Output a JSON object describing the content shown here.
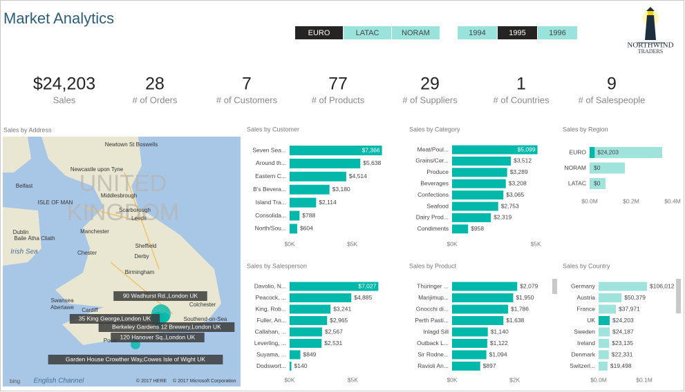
{
  "header": {
    "title": "Market Analytics",
    "region_filters": [
      "EURO",
      "LATAC",
      "NORAM"
    ],
    "region_selected": 0,
    "year_filters": [
      "1994",
      "1995",
      "1996"
    ],
    "year_selected": 1,
    "logo": [
      "NORTHWIND",
      "TRADERS"
    ]
  },
  "kpis": [
    {
      "value": "$24,203",
      "label": "Sales"
    },
    {
      "value": "28",
      "label": "# of Orders"
    },
    {
      "value": "7",
      "label": "# of Customers"
    },
    {
      "value": "77",
      "label": "# of Products"
    },
    {
      "value": "29",
      "label": "# of Suppliers"
    },
    {
      "value": "1",
      "label": "# of Countries"
    },
    {
      "value": "9",
      "label": "# of Salespeople"
    }
  ],
  "map": {
    "title": "Sales by Address",
    "country_label": [
      "UNITED",
      "KINGDOM"
    ],
    "places": [
      "Newtown St Boswells",
      "Newcastle upon Tyne",
      "Belfast",
      "ISLE OF MAN",
      "Middlesbrough",
      "Scarborough",
      "Leeds",
      "Dublin",
      "Baile Átha Cliath",
      "Manchester",
      "Sheffield",
      "Irish Sea",
      "Chester",
      "Birmingham",
      "Swansea",
      "Abertawe",
      "Cardiff",
      "Colchester",
      "Southend-on-Sea",
      "Poole",
      "English Channel",
      "Derby"
    ],
    "addresses": [
      "90 Wadhurst Rd.,London UK",
      "35 King George,London UK",
      "Berkeley Gardens 12 Brewery,London UK",
      "120 Hanover Sq.,London UK",
      "Garden House Crowther Way,Cowes Isle of Wight UK"
    ],
    "credits": [
      "bing",
      "© 2017 HERE",
      "© 2017 Microsoft Corporation"
    ]
  },
  "chart_data": [
    {
      "type": "hbar",
      "title": "Sales by Customer",
      "categories": [
        "Seven Sea...",
        "Around th...",
        "Eastern C...",
        "B's Bevera...",
        "Island Tra...",
        "Consolida...",
        "North/Sou..."
      ],
      "values": [
        7366,
        5638,
        4514,
        3180,
        2114,
        788,
        604
      ],
      "value_labels": [
        "$7,366",
        "$5,638",
        "$4,514",
        "$3,180",
        "$2,114",
        "$788",
        "$604"
      ],
      "color": "#01b8aa",
      "xlim": [
        0,
        7500
      ],
      "xticks": [
        {
          "value": 0,
          "label": "$0K"
        },
        {
          "value": 5000,
          "label": "$5K"
        }
      ]
    },
    {
      "type": "hbar",
      "title": "Sales by Category",
      "categories": [
        "Meat/Poul...",
        "Grains/Cer...",
        "Produce",
        "Beverages",
        "Confections",
        "Seafood",
        "Dairy Prod...",
        "Condiments"
      ],
      "values": [
        5099,
        3512,
        3289,
        3208,
        3065,
        2753,
        2319,
        958
      ],
      "value_labels": [
        "$5,099",
        "$3,512",
        "$3,289",
        "$3,208",
        "$3,065",
        "$2,753",
        "$2,319",
        "$958"
      ],
      "color": "#01b8aa",
      "xlim": [
        0,
        5200
      ],
      "xticks": [
        {
          "value": 0,
          "label": "$0K"
        },
        {
          "value": 5000,
          "label": "$5K"
        }
      ]
    },
    {
      "type": "hbar",
      "title": "Sales by Region",
      "categories": [
        "EURO",
        "NORAM",
        "LATAC"
      ],
      "values": [
        24203,
        0,
        0
      ],
      "value_labels": [
        "$24,203",
        "$0",
        "$0"
      ],
      "background_values": [
        350000,
        170000,
        77000
      ],
      "background_color": "#9fe3dc",
      "color": "#01b8aa",
      "xlim": [
        0,
        400000
      ],
      "xticks": [
        {
          "value": 0,
          "label": "$0.0M"
        },
        {
          "value": 200000,
          "label": "$0.2M"
        },
        {
          "value": 400000,
          "label": "$0.4M"
        }
      ]
    },
    {
      "type": "hbar",
      "title": "Sales by Salesperson",
      "categories": [
        "Davolio, N...",
        "Peacock, ...",
        "King, Rob...",
        "Fuller, An...",
        "Callahan, ...",
        "Leverling, ...",
        "Suyama, ...",
        "Dodswort..."
      ],
      "values": [
        7027,
        4885,
        3241,
        2965,
        2567,
        2531,
        849,
        140
      ],
      "value_labels": [
        "$7,027",
        "$4,885",
        "$3,241",
        "$2,965",
        "$2,567",
        "$2,531",
        "$849",
        "$140"
      ],
      "color": "#01b8aa",
      "xlim": [
        0,
        7500
      ],
      "xticks": [
        {
          "value": 0,
          "label": "$0K"
        },
        {
          "value": 5000,
          "label": "$5K"
        }
      ]
    },
    {
      "type": "hbar",
      "title": "Sales by Product",
      "categories": [
        "Thüringer ...",
        "Manjimup...",
        "Gnocchi di...",
        "Perth Pasti...",
        "Inlagd Sill",
        "Outback L...",
        "Sir Rodne...",
        "Ravioli An..."
      ],
      "values": [
        2079,
        1950,
        1786,
        1638,
        1140,
        1122,
        1094,
        897
      ],
      "value_labels": [
        "$2,079",
        "$1,950",
        "$1,786",
        "$1,638",
        "$1,140",
        "$1,122",
        "$1,094",
        "$897"
      ],
      "color": "#01b8aa",
      "xlim": [
        0,
        2800
      ],
      "xticks": [
        {
          "value": 0,
          "label": "$0K"
        },
        {
          "value": 2000,
          "label": "$2K"
        }
      ]
    },
    {
      "type": "hbar",
      "title": "Sales by Country",
      "categories": [
        "Germany",
        "Austria",
        "France",
        "UK",
        "Sweden",
        "Ireland",
        "Denmark",
        "Switzerl..."
      ],
      "values": [
        106012,
        50379,
        37971,
        24203,
        24187,
        23135,
        22331,
        19498
      ],
      "value_labels": [
        "$106,012",
        "$50,379",
        "$37,971",
        "$24,203",
        "$24,187",
        "$23,135",
        "$22,331",
        "$19,498"
      ],
      "bar_colors": [
        "#9fe3dc",
        "#9fe3dc",
        "#9fe3dc",
        "#01b8aa",
        "#9fe3dc",
        "#9fe3dc",
        "#9fe3dc",
        "#9fe3dc"
      ],
      "color": "#01b8aa",
      "xlim": [
        0,
        165000
      ],
      "xticks": [
        {
          "value": 0,
          "label": "$0.0M"
        },
        {
          "value": 100000,
          "label": "$0.1M"
        }
      ]
    }
  ]
}
